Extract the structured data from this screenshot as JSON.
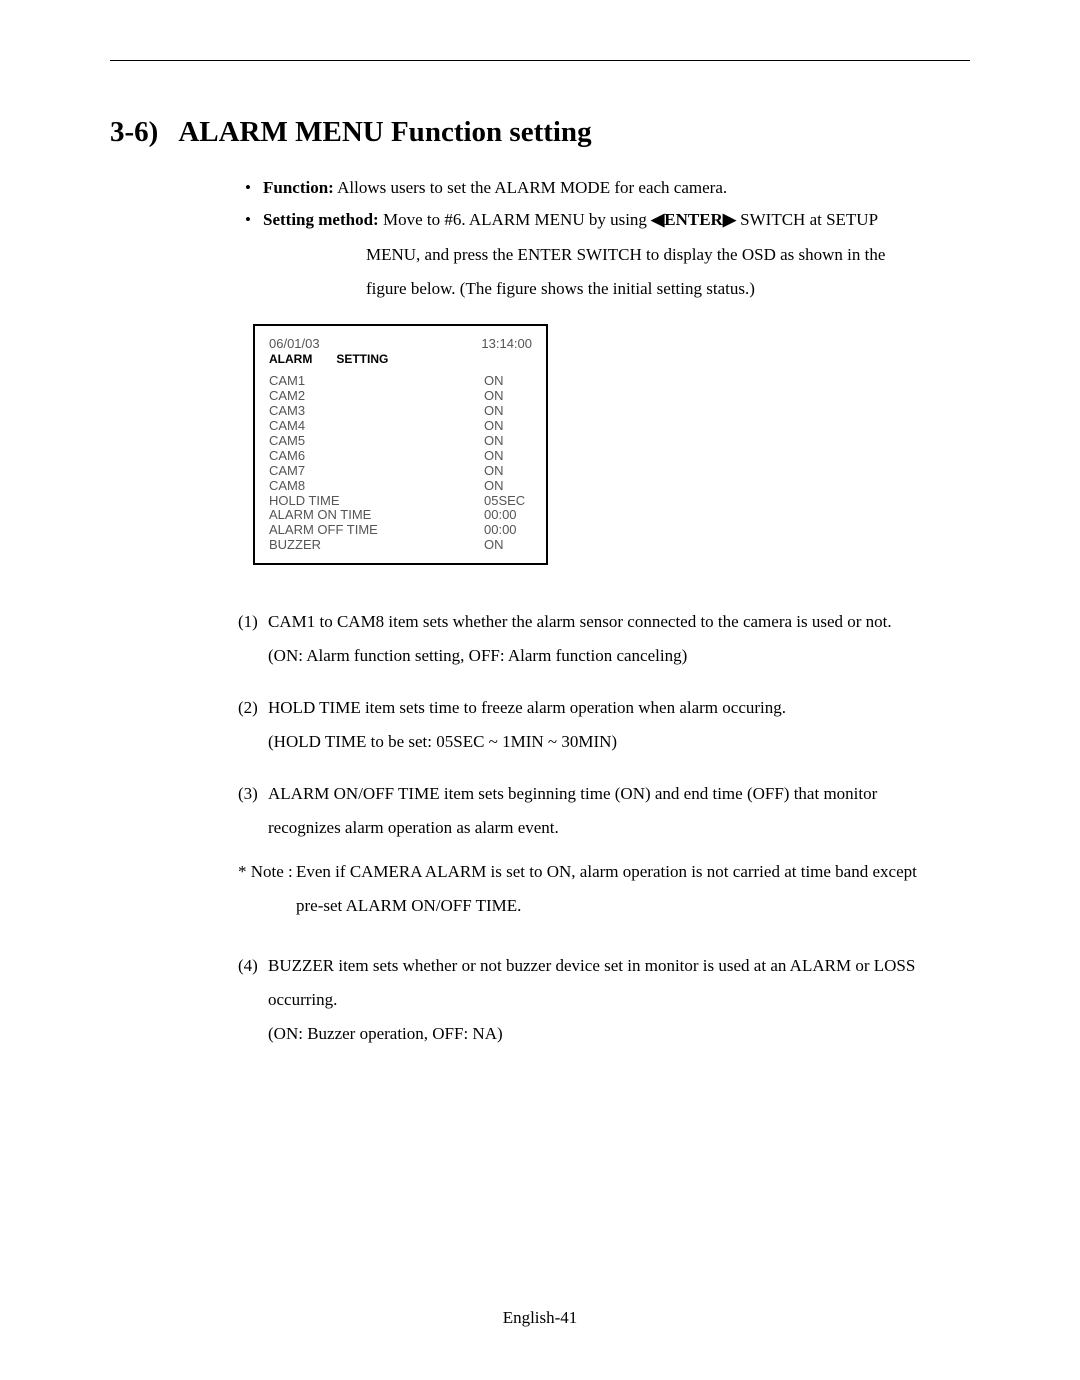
{
  "section": {
    "number": "3-6)",
    "title": "ALARM MENU Function setting"
  },
  "bullets": {
    "function_label": "Function:",
    "function_text": " Allows users to set the ALARM MODE for each camera.",
    "setting_label": "Setting method:",
    "setting_text_1": " Move to #6. ALARM MENU by using ",
    "enter_switch": "◀ENTER▶",
    "setting_text_2": " SWITCH at SETUP",
    "setting_cont_1": "MENU, and press the ENTER SWITCH to display the OSD as shown in the",
    "setting_cont_2": "figure below.  (The figure shows the initial setting status.)"
  },
  "osd": {
    "date": "06/01/03",
    "time": "13:14:00",
    "title_left": "ALARM",
    "title_right": "SETTING",
    "rows": [
      {
        "label": "CAM1",
        "value": "ON"
      },
      {
        "label": "CAM2",
        "value": "ON"
      },
      {
        "label": "CAM3",
        "value": "ON"
      },
      {
        "label": "CAM4",
        "value": "ON"
      },
      {
        "label": "CAM5",
        "value": "ON"
      },
      {
        "label": "CAM6",
        "value": "ON"
      },
      {
        "label": "CAM7",
        "value": "ON"
      },
      {
        "label": "CAM8",
        "value": "ON"
      },
      {
        "label": "HOLD TIME",
        "value": "05SEC"
      },
      {
        "label": "ALARM ON TIME",
        "value": "00:00"
      },
      {
        "label": "ALARM OFF TIME",
        "value": "00:00"
      },
      {
        "label": "BUZZER",
        "value": "ON"
      }
    ]
  },
  "items": {
    "i1_num": "(1)",
    "i1_l1": "CAM1 to CAM8 item sets whether the alarm sensor connected to the camera is used or not.",
    "i1_l2": "(ON: Alarm function setting, OFF: Alarm function canceling)",
    "i2_num": "(2)",
    "i2_l1": "HOLD TIME item sets time to freeze alarm operation when alarm occuring.",
    "i2_l2": "(HOLD TIME to be set: 05SEC ~ 1MIN ~ 30MIN)",
    "i3_num": "(3)",
    "i3_l1": "ALARM ON/OFF TIME item sets beginning time (ON) and end time (OFF) that monitor",
    "i3_l2": "recognizes alarm operation as alarm event.",
    "note_star": "* Note :",
    "note_l1": "Even if CAMERA ALARM is set to ON, alarm operation is not carried at time band except",
    "note_l2": "pre-set ALARM ON/OFF TIME.",
    "i4_num": "(4)",
    "i4_l1": "BUZZER item sets whether or not buzzer device set in monitor is used at an ALARM or LOSS",
    "i4_l2": "occurring.",
    "i4_l3": "(ON: Buzzer operation, OFF: NA)"
  },
  "footer": "English-41"
}
